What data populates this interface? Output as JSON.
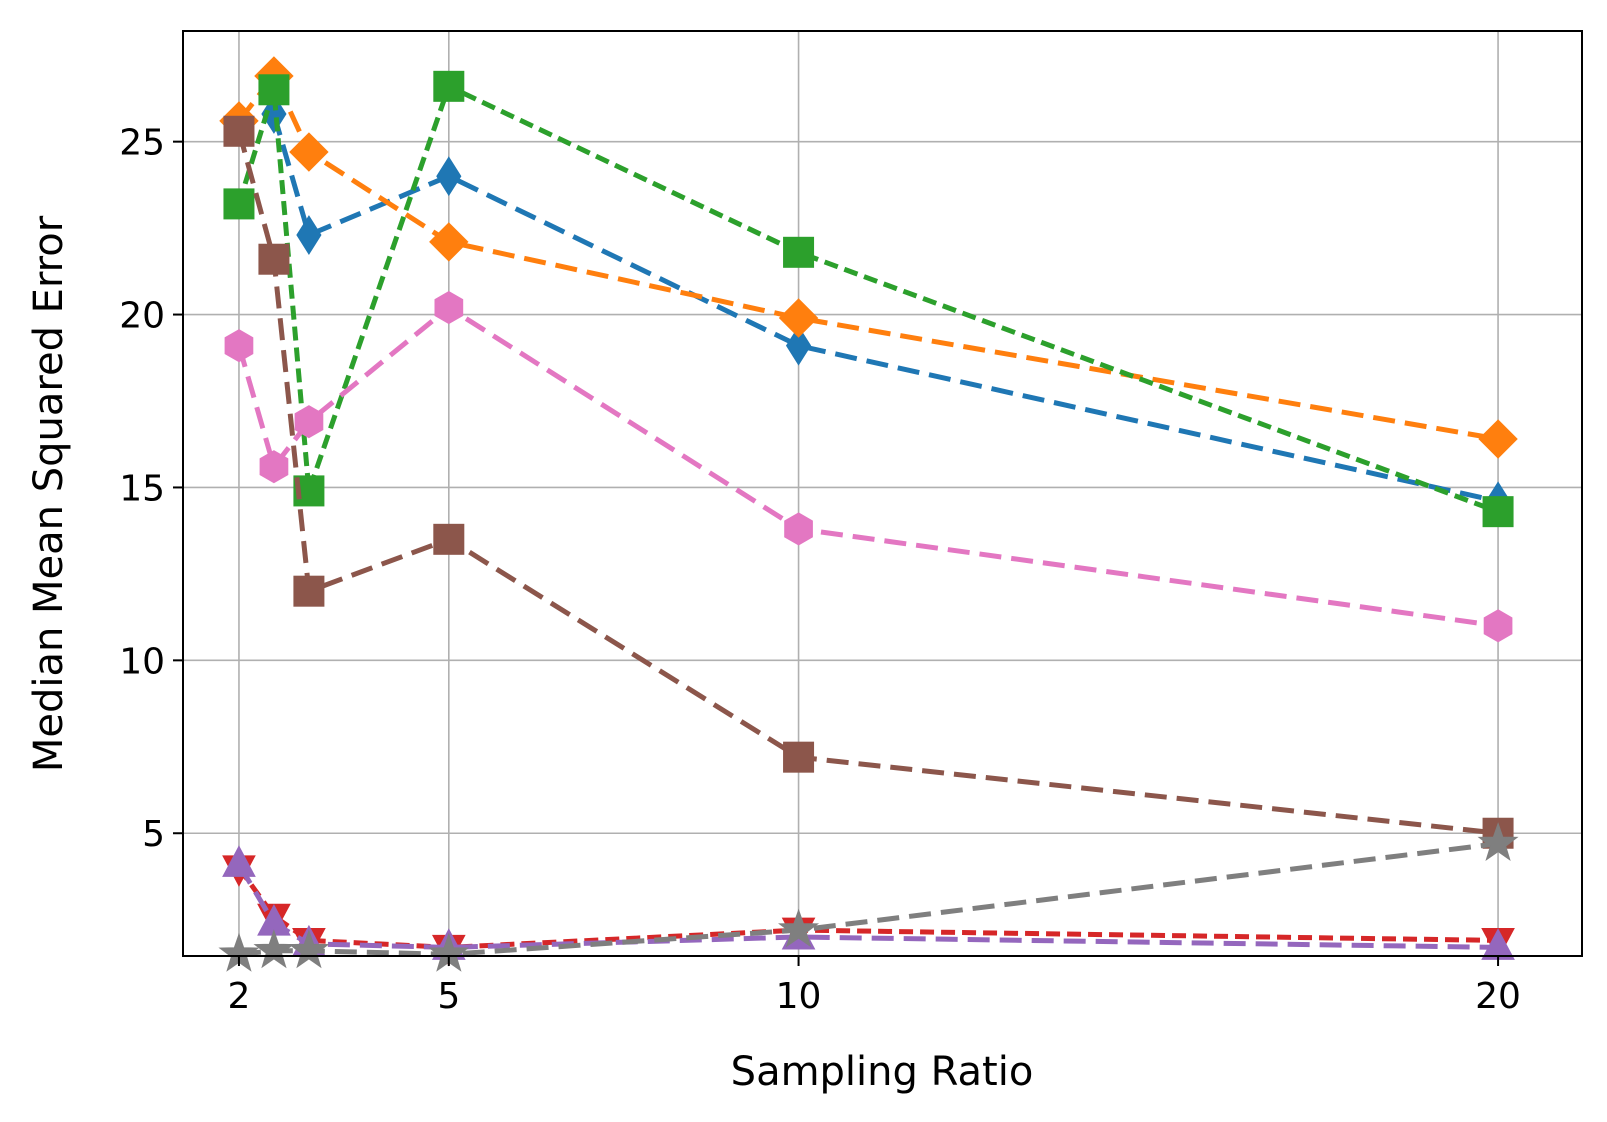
{
  "chart_data": {
    "type": "line",
    "title": "",
    "xlabel": "Sampling Ratio",
    "ylabel": "Median Mean Squared Error",
    "xlim": [
      1.2,
      21.2
    ],
    "ylim": [
      1.45,
      28.2
    ],
    "grid": true,
    "legend": "none",
    "x_ticks": [
      2,
      5,
      10,
      20
    ],
    "y_ticks": [
      5,
      10,
      15,
      20,
      25
    ],
    "series": [
      {
        "name": "blue",
        "color": "#1f77b4",
        "marker": "thin_diamond",
        "dash": "long",
        "x": [
          2.5,
          3,
          5,
          10,
          20
        ],
        "y": [
          25.8,
          22.3,
          24.0,
          19.1,
          14.6
        ]
      },
      {
        "name": "orange",
        "color": "#ff7f0e",
        "marker": "diamond",
        "dash": "long",
        "x": [
          2,
          2.5,
          3,
          5,
          10,
          20
        ],
        "y": [
          25.6,
          26.9,
          24.7,
          22.1,
          19.9,
          16.4
        ]
      },
      {
        "name": "green",
        "color": "#2ca02c",
        "marker": "square",
        "dash": "short",
        "x": [
          2,
          2.5,
          3,
          5,
          10,
          20
        ],
        "y": [
          23.2,
          26.5,
          14.9,
          26.6,
          21.8,
          14.3
        ]
      },
      {
        "name": "red",
        "color": "#d62728",
        "marker": "triangle_down",
        "dash": "short",
        "x": [
          2,
          2.5,
          3,
          5,
          10,
          20
        ],
        "y": [
          4.0,
          2.6,
          1.9,
          1.7,
          2.2,
          1.9
        ]
      },
      {
        "name": "purple",
        "color": "#9467bd",
        "marker": "triangle_up",
        "dash": "long",
        "x": [
          2,
          2.5,
          3,
          5,
          10,
          20
        ],
        "y": [
          4.1,
          2.4,
          1.8,
          1.7,
          2.0,
          1.7
        ]
      },
      {
        "name": "brown",
        "color": "#8c564b",
        "marker": "square",
        "dash": "long",
        "x": [
          2,
          2.5,
          3,
          5,
          10,
          20
        ],
        "y": [
          25.3,
          21.6,
          12.0,
          13.5,
          7.2,
          5.0
        ]
      },
      {
        "name": "pink",
        "color": "#e377c2",
        "marker": "hexagon",
        "dash": "long",
        "x": [
          2,
          2.5,
          3,
          5,
          10,
          20
        ],
        "y": [
          19.1,
          15.6,
          16.9,
          20.2,
          13.8,
          11.0
        ]
      },
      {
        "name": "gray",
        "color": "#7f7f7f",
        "marker": "star",
        "dash": "long",
        "x": [
          2,
          2.5,
          3,
          5,
          10,
          20
        ],
        "y": [
          1.5,
          1.6,
          1.6,
          1.5,
          2.2,
          4.7
        ]
      }
    ]
  }
}
